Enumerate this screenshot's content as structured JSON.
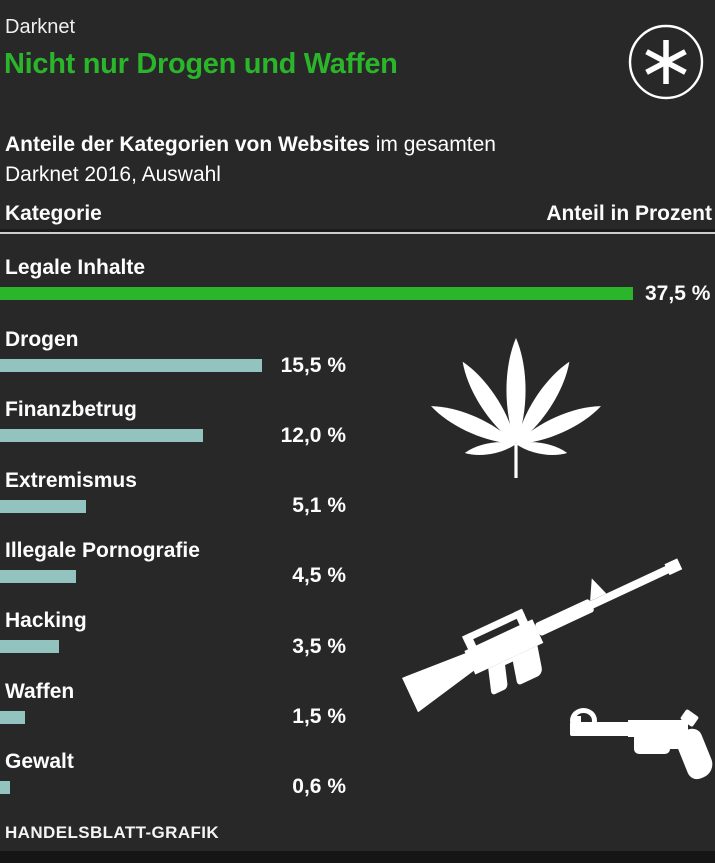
{
  "header": {
    "kicker": "Darknet",
    "title": "Nicht nur Drogen und Waffen",
    "title_color": "#2ab52a",
    "badge_icon": "asterisk-icon"
  },
  "subtitle": {
    "bold": "Anteile der Kategorien von Websites",
    "rest": " im gesamten",
    "line2": "Darknet 2016, Auswahl"
  },
  "table_header": {
    "left": "Kategorie",
    "right": "Anteil in Prozent"
  },
  "chart_data": {
    "type": "bar",
    "orientation": "horizontal",
    "title": "Anteile der Kategorien von Websites im gesamten Darknet 2016, Auswahl",
    "xlabel": "Anteil in Prozent",
    "ylabel": "Kategorie",
    "xlim": [
      0,
      37.5
    ],
    "grid": false,
    "legend": false,
    "categories": [
      "Legale Inhalte",
      "Drogen",
      "Finanzbetrug",
      "Extremismus",
      "Illegale Pornografie",
      "Hacking",
      "Waffen",
      "Gewalt"
    ],
    "values": [
      37.5,
      15.5,
      12.0,
      5.1,
      4.5,
      3.5,
      1.5,
      0.6
    ],
    "value_labels": [
      "37,5 %",
      "15,5 %",
      "12,0 %",
      "5,1 %",
      "4,5 %",
      "3,5 %",
      "1,5 %",
      "0,6 %"
    ],
    "highlight_index": 0,
    "bar_colors": {
      "highlight": "#2ab52a",
      "default": "#92c3be"
    }
  },
  "icons": {
    "leaf": "cannabis-leaf-icon",
    "rifle": "assault-rifle-icon",
    "revolver": "revolver-icon"
  },
  "colors": {
    "background": "#282828",
    "text": "#fdfdfd",
    "separator": "#cccccc",
    "footer_bar": "#151515"
  },
  "footer": {
    "credit": "HANDELSBLATT-GRAFIK"
  }
}
